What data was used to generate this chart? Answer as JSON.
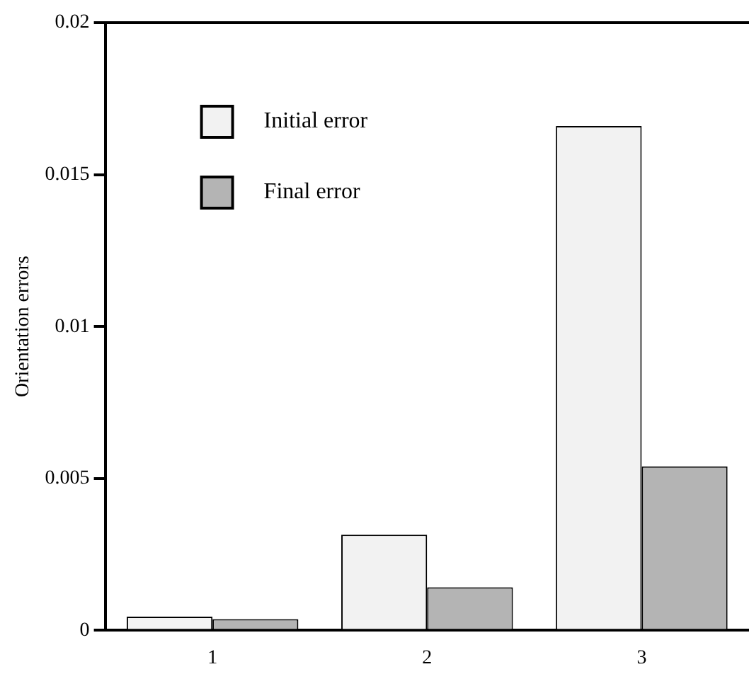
{
  "chart_data": {
    "type": "bar",
    "ylabel": "Orientation errors",
    "categories": [
      "1",
      "2",
      "3"
    ],
    "series": [
      {
        "name": "Initial error",
        "color": "#f2f2f2",
        "values": [
          0.00045,
          0.00315,
          0.0166
        ]
      },
      {
        "name": "Final error",
        "color": "#b4b4b4",
        "values": [
          0.00037,
          0.00142,
          0.0054
        ]
      }
    ],
    "ylim": [
      0,
      0.02
    ],
    "yticks": [
      0,
      0.005,
      0.01,
      0.015,
      0.02
    ],
    "grid": false,
    "legend": "top left"
  }
}
